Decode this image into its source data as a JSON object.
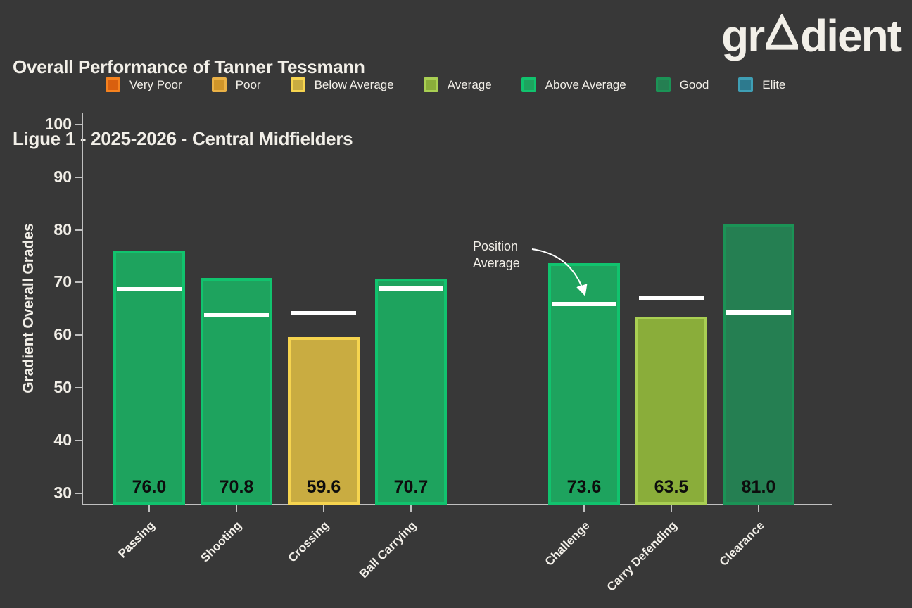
{
  "header": {
    "title_line1": "Overall Performance of Tanner Tessmann",
    "title_line2": "Ligue 1 - 2025-2026 - Central Midfielders",
    "logo": {
      "name": "gradient",
      "pre": "gr",
      "post": "dient"
    }
  },
  "chart_data": {
    "type": "bar",
    "title": "Overall Performance of Tanner Tessmann",
    "subtitle": "Ligue 1 - 2025-2026 - Central Midfielders",
    "ylabel": "Gradient Overall Grades",
    "ylim": [
      27.5,
      102.5
    ],
    "yticks": [
      100,
      90,
      80,
      70,
      60,
      50,
      40,
      30
    ],
    "grid": false,
    "legend_position": "top",
    "legend_entries": [
      "Very Poor",
      "Poor",
      "Below Average",
      "Average",
      "Above Average",
      "Good",
      "Elite"
    ],
    "categories": [
      "Passing",
      "Shooting",
      "Crossing",
      "Ball Carrying",
      "Challenge",
      "Carry Defending",
      "Clearance"
    ],
    "values": [
      76.0,
      70.8,
      59.6,
      70.7,
      73.6,
      63.5,
      81.0
    ],
    "value_labels": [
      "76.0",
      "70.8",
      "59.6",
      "70.7",
      "73.6",
      "63.5",
      "81.0"
    ],
    "grades": [
      "Above Average",
      "Above Average",
      "Below Average",
      "Above Average",
      "Above Average",
      "Average",
      "Good"
    ],
    "position_averages": [
      68.7,
      63.7,
      64.1,
      68.8,
      65.9,
      67.1,
      64.3
    ],
    "group_gap_after_index": 3,
    "annotation": {
      "line1": "Position",
      "line2": "Average",
      "points_to": "Challenge"
    }
  },
  "colors": {
    "background": "#383838",
    "text": "#f2efe8",
    "axis_line": "#c0c0c0",
    "bar_value_text": "#0d0d0d",
    "position_average_line": "#ffffff",
    "grades": {
      "Very Poor": {
        "fill": "#d9600f",
        "border": "#f5821f"
      },
      "Poor": {
        "fill": "#d09529",
        "border": "#eab146"
      },
      "Below Average": {
        "fill": "#c9ac41",
        "border": "#f6d44f"
      },
      "Average": {
        "fill": "#8aad3a",
        "border": "#a9cf53"
      },
      "Above Average": {
        "fill": "#1ea35e",
        "border": "#11c36e"
      },
      "Good": {
        "fill": "#257f52",
        "border": "#1b9356"
      },
      "Elite": {
        "fill": "#2d7a8e",
        "border": "#3f9fb5"
      }
    }
  }
}
